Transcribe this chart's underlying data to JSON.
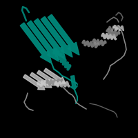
{
  "background_color": "#000000",
  "teal_color": "#00897B",
  "gray_color": "#AAAAAA",
  "light_gray": "#CCCCCC",
  "dark_gray": "#888888",
  "figsize": [
    2.0,
    2.0
  ],
  "dpi": 100
}
